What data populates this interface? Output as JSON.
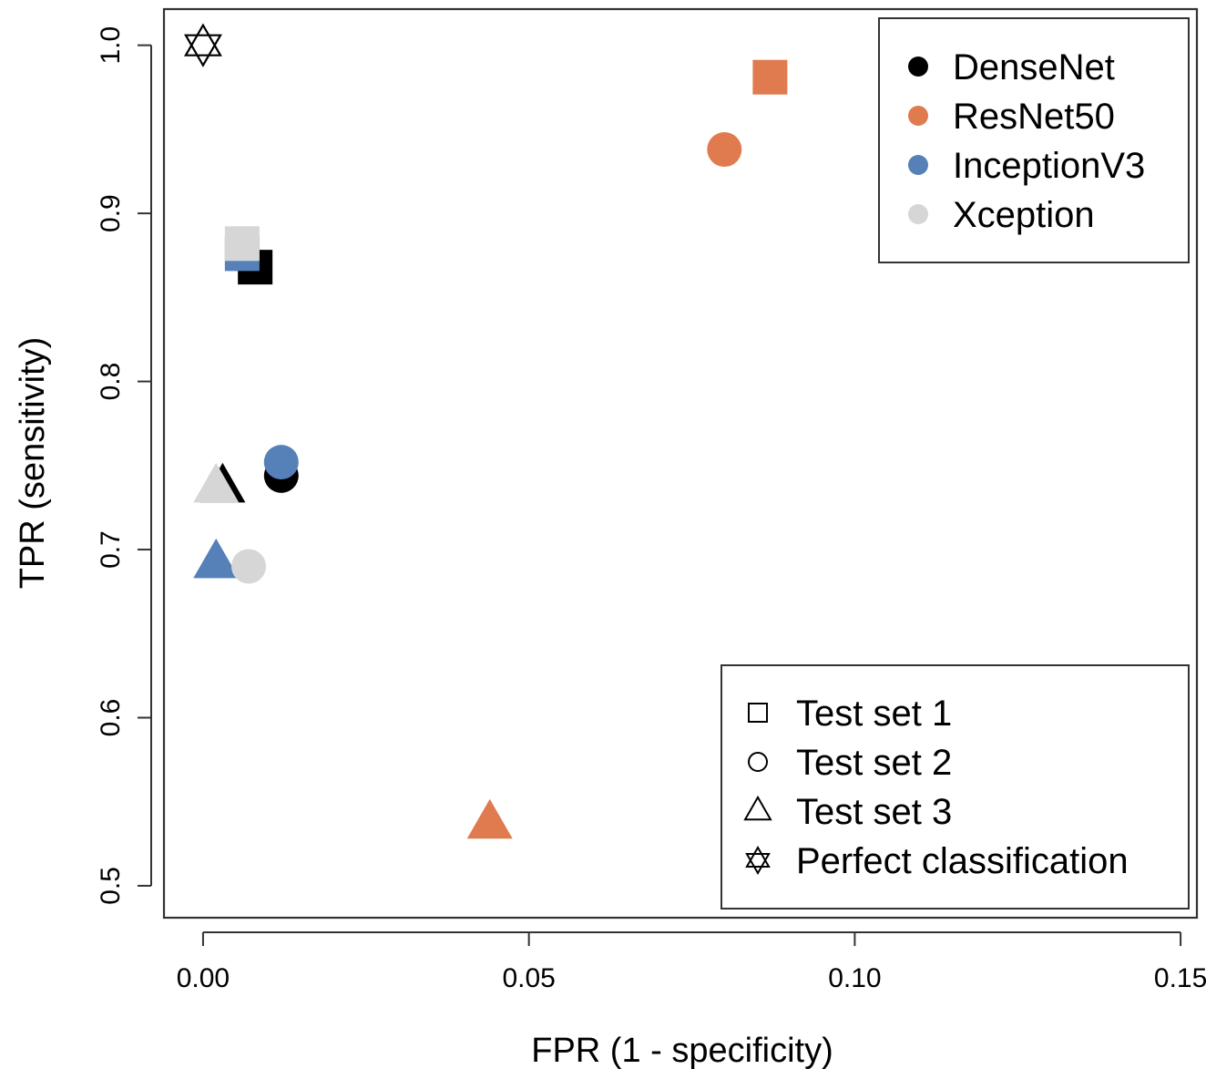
{
  "chart_data": {
    "type": "scatter",
    "xlabel": "FPR (1 - specificity)",
    "ylabel": "TPR (sensitivity)",
    "xlim": [
      -0.006,
      0.1525
    ],
    "ylim": [
      0.481,
      1.0215
    ],
    "x_ticks": [
      {
        "value": 0.0,
        "label": "0.00"
      },
      {
        "value": 0.05,
        "label": "0.05"
      },
      {
        "value": 0.1,
        "label": "0.10"
      },
      {
        "value": 0.15,
        "label": "0.15"
      }
    ],
    "y_ticks": [
      {
        "value": 0.5,
        "label": "0.5"
      },
      {
        "value": 0.6,
        "label": "0.6"
      },
      {
        "value": 0.7,
        "label": "0.7"
      },
      {
        "value": 0.8,
        "label": "0.8"
      },
      {
        "value": 0.9,
        "label": "0.9"
      },
      {
        "value": 1.0,
        "label": "1.0"
      }
    ],
    "grid": false,
    "model_legend": {
      "position": "top-right",
      "entries": [
        {
          "label": "DenseNet",
          "color": "#000000"
        },
        {
          "label": "ResNet50",
          "color": "#E07B4F"
        },
        {
          "label": "InceptionV3",
          "color": "#5580B8"
        },
        {
          "label": "Xception",
          "color": "#D6D6D6"
        }
      ]
    },
    "testset_legend": {
      "position": "bottom-right",
      "entries": [
        {
          "label": "Test set 1",
          "shape": "square"
        },
        {
          "label": "Test set 2",
          "shape": "circle"
        },
        {
          "label": "Test set 3",
          "shape": "triangle"
        },
        {
          "label": "Perfect classification",
          "shape": "star"
        }
      ]
    },
    "points": [
      {
        "model": "DenseNet",
        "test_set": "Test set 3",
        "shape": "triangle",
        "x": 0.003,
        "y": 0.737
      },
      {
        "model": "Xception",
        "test_set": "Test set 3",
        "shape": "triangle",
        "x": 0.002,
        "y": 0.737
      },
      {
        "model": "InceptionV3",
        "test_set": "Test set 3",
        "shape": "triangle",
        "x": 0.002,
        "y": 0.692
      },
      {
        "model": "ResNet50",
        "test_set": "Test set 3",
        "shape": "triangle",
        "x": 0.044,
        "y": 0.537
      },
      {
        "model": "DenseNet",
        "test_set": "Test set 2",
        "shape": "circle",
        "x": 0.012,
        "y": 0.744
      },
      {
        "model": "InceptionV3",
        "test_set": "Test set 2",
        "shape": "circle",
        "x": 0.012,
        "y": 0.752
      },
      {
        "model": "Xception",
        "test_set": "Test set 2",
        "shape": "circle",
        "x": 0.007,
        "y": 0.69
      },
      {
        "model": "ResNet50",
        "test_set": "Test set 2",
        "shape": "circle",
        "x": 0.08,
        "y": 0.938
      },
      {
        "model": "DenseNet",
        "test_set": "Test set 1",
        "shape": "square",
        "x": 0.008,
        "y": 0.868
      },
      {
        "model": "InceptionV3",
        "test_set": "Test set 1",
        "shape": "square",
        "x": 0.006,
        "y": 0.876
      },
      {
        "model": "Xception",
        "test_set": "Test set 1",
        "shape": "square",
        "x": 0.006,
        "y": 0.882
      },
      {
        "model": "ResNet50",
        "test_set": "Test set 1",
        "shape": "square",
        "x": 0.087,
        "y": 0.981
      },
      {
        "model": "Perfect classification",
        "test_set": "Perfect classification",
        "shape": "star",
        "x": 0.0,
        "y": 1.0
      }
    ]
  }
}
